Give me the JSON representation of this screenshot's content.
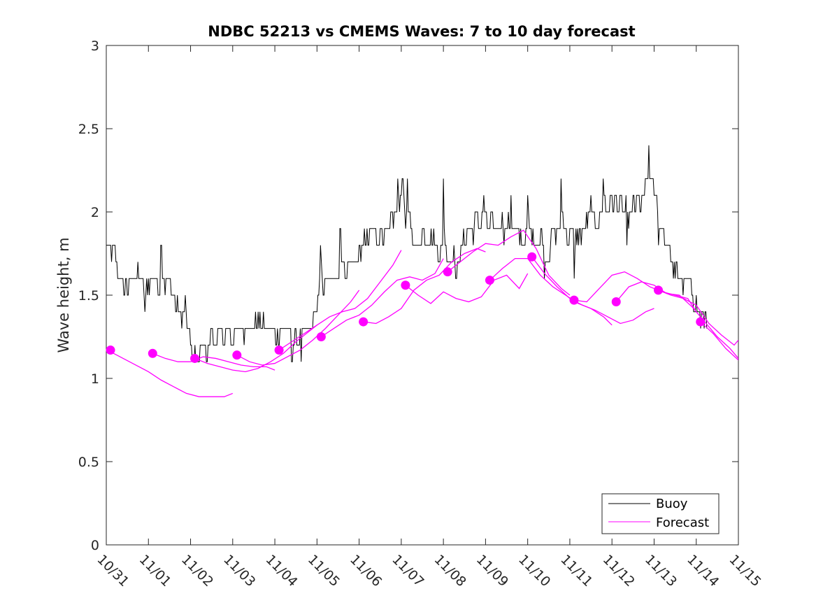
{
  "chart_data": {
    "type": "line",
    "title": "NDBC 52213 vs CMEMS Waves: 7 to 10 day forecast",
    "xlabel": "",
    "ylabel": "Wave height, m",
    "xlim": [
      0,
      15
    ],
    "ylim": [
      0,
      3
    ],
    "xticks": [
      0,
      1,
      2,
      3,
      4,
      5,
      6,
      7,
      8,
      9,
      10,
      11,
      12,
      13,
      14,
      15
    ],
    "xtick_labels": [
      "10/31",
      "11/01",
      "11/02",
      "11/03",
      "11/04",
      "11/05",
      "11/06",
      "11/07",
      "11/08",
      "11/09",
      "11/10",
      "11/11",
      "11/12",
      "11/13",
      "11/14",
      "11/15"
    ],
    "yticks": [
      0,
      0.5,
      1,
      1.5,
      2,
      2.5,
      3
    ],
    "ytick_labels": [
      "0",
      "0.5",
      "1",
      "1.5",
      "2",
      "2.5",
      "3"
    ],
    "legend": {
      "position": "bottom-right",
      "entries": [
        {
          "label": "Buoy",
          "color": "#000000"
        },
        {
          "label": "Forecast",
          "color": "#ff00ff"
        }
      ]
    },
    "colors": {
      "buoy": "#000000",
      "forecast": "#ff00ff",
      "axes": "#262626"
    },
    "buoy_anchors": [
      [
        0.0,
        1.8
      ],
      [
        0.2,
        1.7
      ],
      [
        0.35,
        1.6
      ],
      [
        0.5,
        1.55
      ],
      [
        0.7,
        1.6
      ],
      [
        0.9,
        1.55
      ],
      [
        1.05,
        1.6
      ],
      [
        1.3,
        1.58
      ],
      [
        1.5,
        1.5
      ],
      [
        1.7,
        1.42
      ],
      [
        1.85,
        1.35
      ],
      [
        2.0,
        1.2
      ],
      [
        2.1,
        1.15
      ],
      [
        2.3,
        1.2
      ],
      [
        2.5,
        1.22
      ],
      [
        2.7,
        1.28
      ],
      [
        2.9,
        1.25
      ],
      [
        3.1,
        1.28
      ],
      [
        3.3,
        1.3
      ],
      [
        3.5,
        1.3
      ],
      [
        3.7,
        1.32
      ],
      [
        3.9,
        1.3
      ],
      [
        4.1,
        1.32
      ],
      [
        4.3,
        1.25
      ],
      [
        4.5,
        1.25
      ],
      [
        4.8,
        1.3
      ],
      [
        5.0,
        1.45
      ],
      [
        5.2,
        1.6
      ],
      [
        5.4,
        1.6
      ],
      [
        5.6,
        1.65
      ],
      [
        5.8,
        1.7
      ],
      [
        6.0,
        1.75
      ],
      [
        6.2,
        1.8
      ],
      [
        6.5,
        1.85
      ],
      [
        6.8,
        1.9
      ],
      [
        7.0,
        2.1
      ],
      [
        7.2,
        1.85
      ],
      [
        7.4,
        1.8
      ],
      [
        7.6,
        1.9
      ],
      [
        7.8,
        1.8
      ],
      [
        8.0,
        1.75
      ],
      [
        8.2,
        1.7
      ],
      [
        8.4,
        1.78
      ],
      [
        8.6,
        1.9
      ],
      [
        8.8,
        1.95
      ],
      [
        9.0,
        1.92
      ],
      [
        9.2,
        1.9
      ],
      [
        9.4,
        1.92
      ],
      [
        9.6,
        1.88
      ],
      [
        9.8,
        1.85
      ],
      [
        10.0,
        1.82
      ],
      [
        10.2,
        1.88
      ],
      [
        10.4,
        1.8
      ],
      [
        10.6,
        1.85
      ],
      [
        10.8,
        1.9
      ],
      [
        11.0,
        1.9
      ],
      [
        11.2,
        1.85
      ],
      [
        11.4,
        1.92
      ],
      [
        11.6,
        1.95
      ],
      [
        11.8,
        2.0
      ],
      [
        12.0,
        2.05
      ],
      [
        12.2,
        2.05
      ],
      [
        12.4,
        2.0
      ],
      [
        12.6,
        2.05
      ],
      [
        12.8,
        2.05
      ],
      [
        12.95,
        2.15
      ],
      [
        13.1,
        1.95
      ],
      [
        13.3,
        1.8
      ],
      [
        13.5,
        1.65
      ],
      [
        13.7,
        1.58
      ],
      [
        13.9,
        1.5
      ],
      [
        14.1,
        1.4
      ],
      [
        14.25,
        1.35
      ]
    ],
    "buoy_spikes": [
      [
        0.92,
        1.4
      ],
      [
        1.3,
        1.8
      ],
      [
        1.88,
        1.45
      ],
      [
        2.05,
        1.1
      ],
      [
        2.15,
        1.1
      ],
      [
        3.02,
        1.2
      ],
      [
        4.08,
        1.15
      ],
      [
        4.4,
        1.12
      ],
      [
        4.62,
        1.1
      ],
      [
        5.08,
        1.8
      ],
      [
        5.55,
        1.9
      ],
      [
        6.12,
        1.9
      ],
      [
        6.92,
        2.2
      ],
      [
        7.02,
        2.2
      ],
      [
        7.15,
        2.2
      ],
      [
        7.5,
        1.9
      ],
      [
        8.0,
        2.2
      ],
      [
        8.3,
        1.6
      ],
      [
        8.7,
        1.8
      ],
      [
        8.95,
        2.1
      ],
      [
        9.6,
        2.1
      ],
      [
        10.0,
        2.1
      ],
      [
        10.4,
        1.6
      ],
      [
        10.8,
        2.2
      ],
      [
        11.1,
        1.6
      ],
      [
        11.5,
        2.1
      ],
      [
        11.8,
        2.2
      ],
      [
        12.35,
        1.8
      ],
      [
        12.8,
        2.2
      ],
      [
        12.88,
        2.4
      ],
      [
        13.1,
        1.8
      ],
      [
        13.5,
        1.6
      ],
      [
        14.1,
        1.3
      ]
    ],
    "forecasts": [
      {
        "x": [
          0.1,
          0.4,
          0.7,
          1.0,
          1.3,
          1.6,
          1.9,
          2.2,
          2.5,
          2.8,
          3.0
        ],
        "y": [
          1.16,
          1.12,
          1.08,
          1.04,
          0.99,
          0.95,
          0.91,
          0.89,
          0.89,
          0.89,
          0.91
        ]
      },
      {
        "x": [
          1.1,
          1.4,
          1.7,
          2.0,
          2.3,
          2.6,
          2.9,
          3.2,
          3.5,
          3.8,
          4.0
        ],
        "y": [
          1.15,
          1.12,
          1.1,
          1.1,
          1.13,
          1.12,
          1.1,
          1.08,
          1.07,
          1.07,
          1.05
        ]
      },
      {
        "x": [
          2.1,
          2.4,
          2.7,
          3.0,
          3.3,
          3.6,
          3.9,
          4.2,
          4.5,
          4.8,
          5.0
        ],
        "y": [
          1.12,
          1.09,
          1.07,
          1.05,
          1.04,
          1.06,
          1.1,
          1.15,
          1.22,
          1.28,
          1.32
        ]
      },
      {
        "x": [
          3.1,
          3.4,
          3.7,
          4.0,
          4.3,
          4.6,
          4.9,
          5.2,
          5.5,
          5.8,
          6.0
        ],
        "y": [
          1.14,
          1.1,
          1.08,
          1.09,
          1.13,
          1.17,
          1.23,
          1.3,
          1.38,
          1.46,
          1.53
        ]
      },
      {
        "x": [
          4.1,
          4.4,
          4.7,
          5.0,
          5.3,
          5.6,
          5.9,
          6.2,
          6.5,
          6.8,
          7.0
        ],
        "y": [
          1.17,
          1.22,
          1.27,
          1.32,
          1.37,
          1.4,
          1.42,
          1.48,
          1.58,
          1.68,
          1.77
        ]
      },
      {
        "x": [
          5.1,
          5.4,
          5.7,
          6.0,
          6.3,
          6.6,
          6.9,
          7.2,
          7.5,
          7.8,
          8.0
        ],
        "y": [
          1.25,
          1.3,
          1.35,
          1.38,
          1.44,
          1.52,
          1.59,
          1.61,
          1.59,
          1.63,
          1.72
        ]
      },
      {
        "x": [
          6.1,
          6.4,
          6.7,
          7.0,
          7.3,
          7.6,
          7.9,
          8.2,
          8.5,
          8.8,
          9.0
        ],
        "y": [
          1.34,
          1.33,
          1.37,
          1.42,
          1.53,
          1.59,
          1.62,
          1.7,
          1.75,
          1.78,
          1.76
        ]
      },
      {
        "x": [
          7.1,
          7.4,
          7.7,
          8.0,
          8.3,
          8.6,
          8.9,
          9.2,
          9.5,
          9.8,
          10.0
        ],
        "y": [
          1.56,
          1.5,
          1.45,
          1.52,
          1.48,
          1.46,
          1.49,
          1.59,
          1.62,
          1.54,
          1.63
        ]
      },
      {
        "x": [
          8.1,
          8.4,
          8.7,
          9.0,
          9.3,
          9.6,
          9.9,
          10.2,
          10.5,
          10.8,
          11.0
        ],
        "y": [
          1.64,
          1.7,
          1.76,
          1.81,
          1.8,
          1.85,
          1.89,
          1.78,
          1.62,
          1.54,
          1.5
        ]
      },
      {
        "x": [
          9.1,
          9.4,
          9.7,
          10.0,
          10.3,
          10.6,
          10.9,
          11.2,
          11.5,
          11.8,
          12.0
        ],
        "y": [
          1.59,
          1.66,
          1.72,
          1.72,
          1.62,
          1.55,
          1.5,
          1.45,
          1.42,
          1.37,
          1.32
        ]
      },
      {
        "x": [
          10.1,
          10.4,
          10.7,
          11.0,
          11.3,
          11.6,
          11.9,
          12.2,
          12.5,
          12.8,
          13.0
        ],
        "y": [
          1.73,
          1.63,
          1.55,
          1.48,
          1.44,
          1.41,
          1.37,
          1.33,
          1.35,
          1.4,
          1.42
        ]
      },
      {
        "x": [
          11.1,
          11.4,
          11.7,
          12.0,
          12.3,
          12.6,
          12.9,
          13.2,
          13.5,
          13.8,
          14.0
        ],
        "y": [
          1.47,
          1.46,
          1.54,
          1.62,
          1.64,
          1.6,
          1.55,
          1.52,
          1.5,
          1.48,
          1.4
        ]
      },
      {
        "x": [
          12.1,
          12.4,
          12.7,
          13.0,
          13.3,
          13.6,
          13.9,
          14.2,
          14.5,
          14.8,
          15.0
        ],
        "y": [
          1.46,
          1.55,
          1.58,
          1.56,
          1.51,
          1.5,
          1.43,
          1.34,
          1.25,
          1.18,
          1.12
        ]
      },
      {
        "x": [
          13.1,
          13.4,
          13.7,
          14.0,
          14.3,
          14.6,
          14.9,
          15.0
        ],
        "y": [
          1.53,
          1.5,
          1.48,
          1.44,
          1.33,
          1.26,
          1.2,
          1.23
        ]
      },
      {
        "x": [
          14.1,
          14.4,
          14.7,
          15.0
        ],
        "y": [
          1.34,
          1.27,
          1.18,
          1.11
        ]
      }
    ],
    "forecast_points": [
      [
        0.1,
        1.17
      ],
      [
        1.1,
        1.15
      ],
      [
        2.1,
        1.12
      ],
      [
        3.1,
        1.14
      ],
      [
        4.1,
        1.17
      ],
      [
        5.1,
        1.25
      ],
      [
        6.1,
        1.34
      ],
      [
        7.1,
        1.56
      ],
      [
        8.1,
        1.64
      ],
      [
        9.1,
        1.59
      ],
      [
        10.1,
        1.73
      ],
      [
        11.1,
        1.47
      ],
      [
        12.1,
        1.46
      ],
      [
        13.1,
        1.53
      ],
      [
        14.1,
        1.34
      ]
    ]
  }
}
